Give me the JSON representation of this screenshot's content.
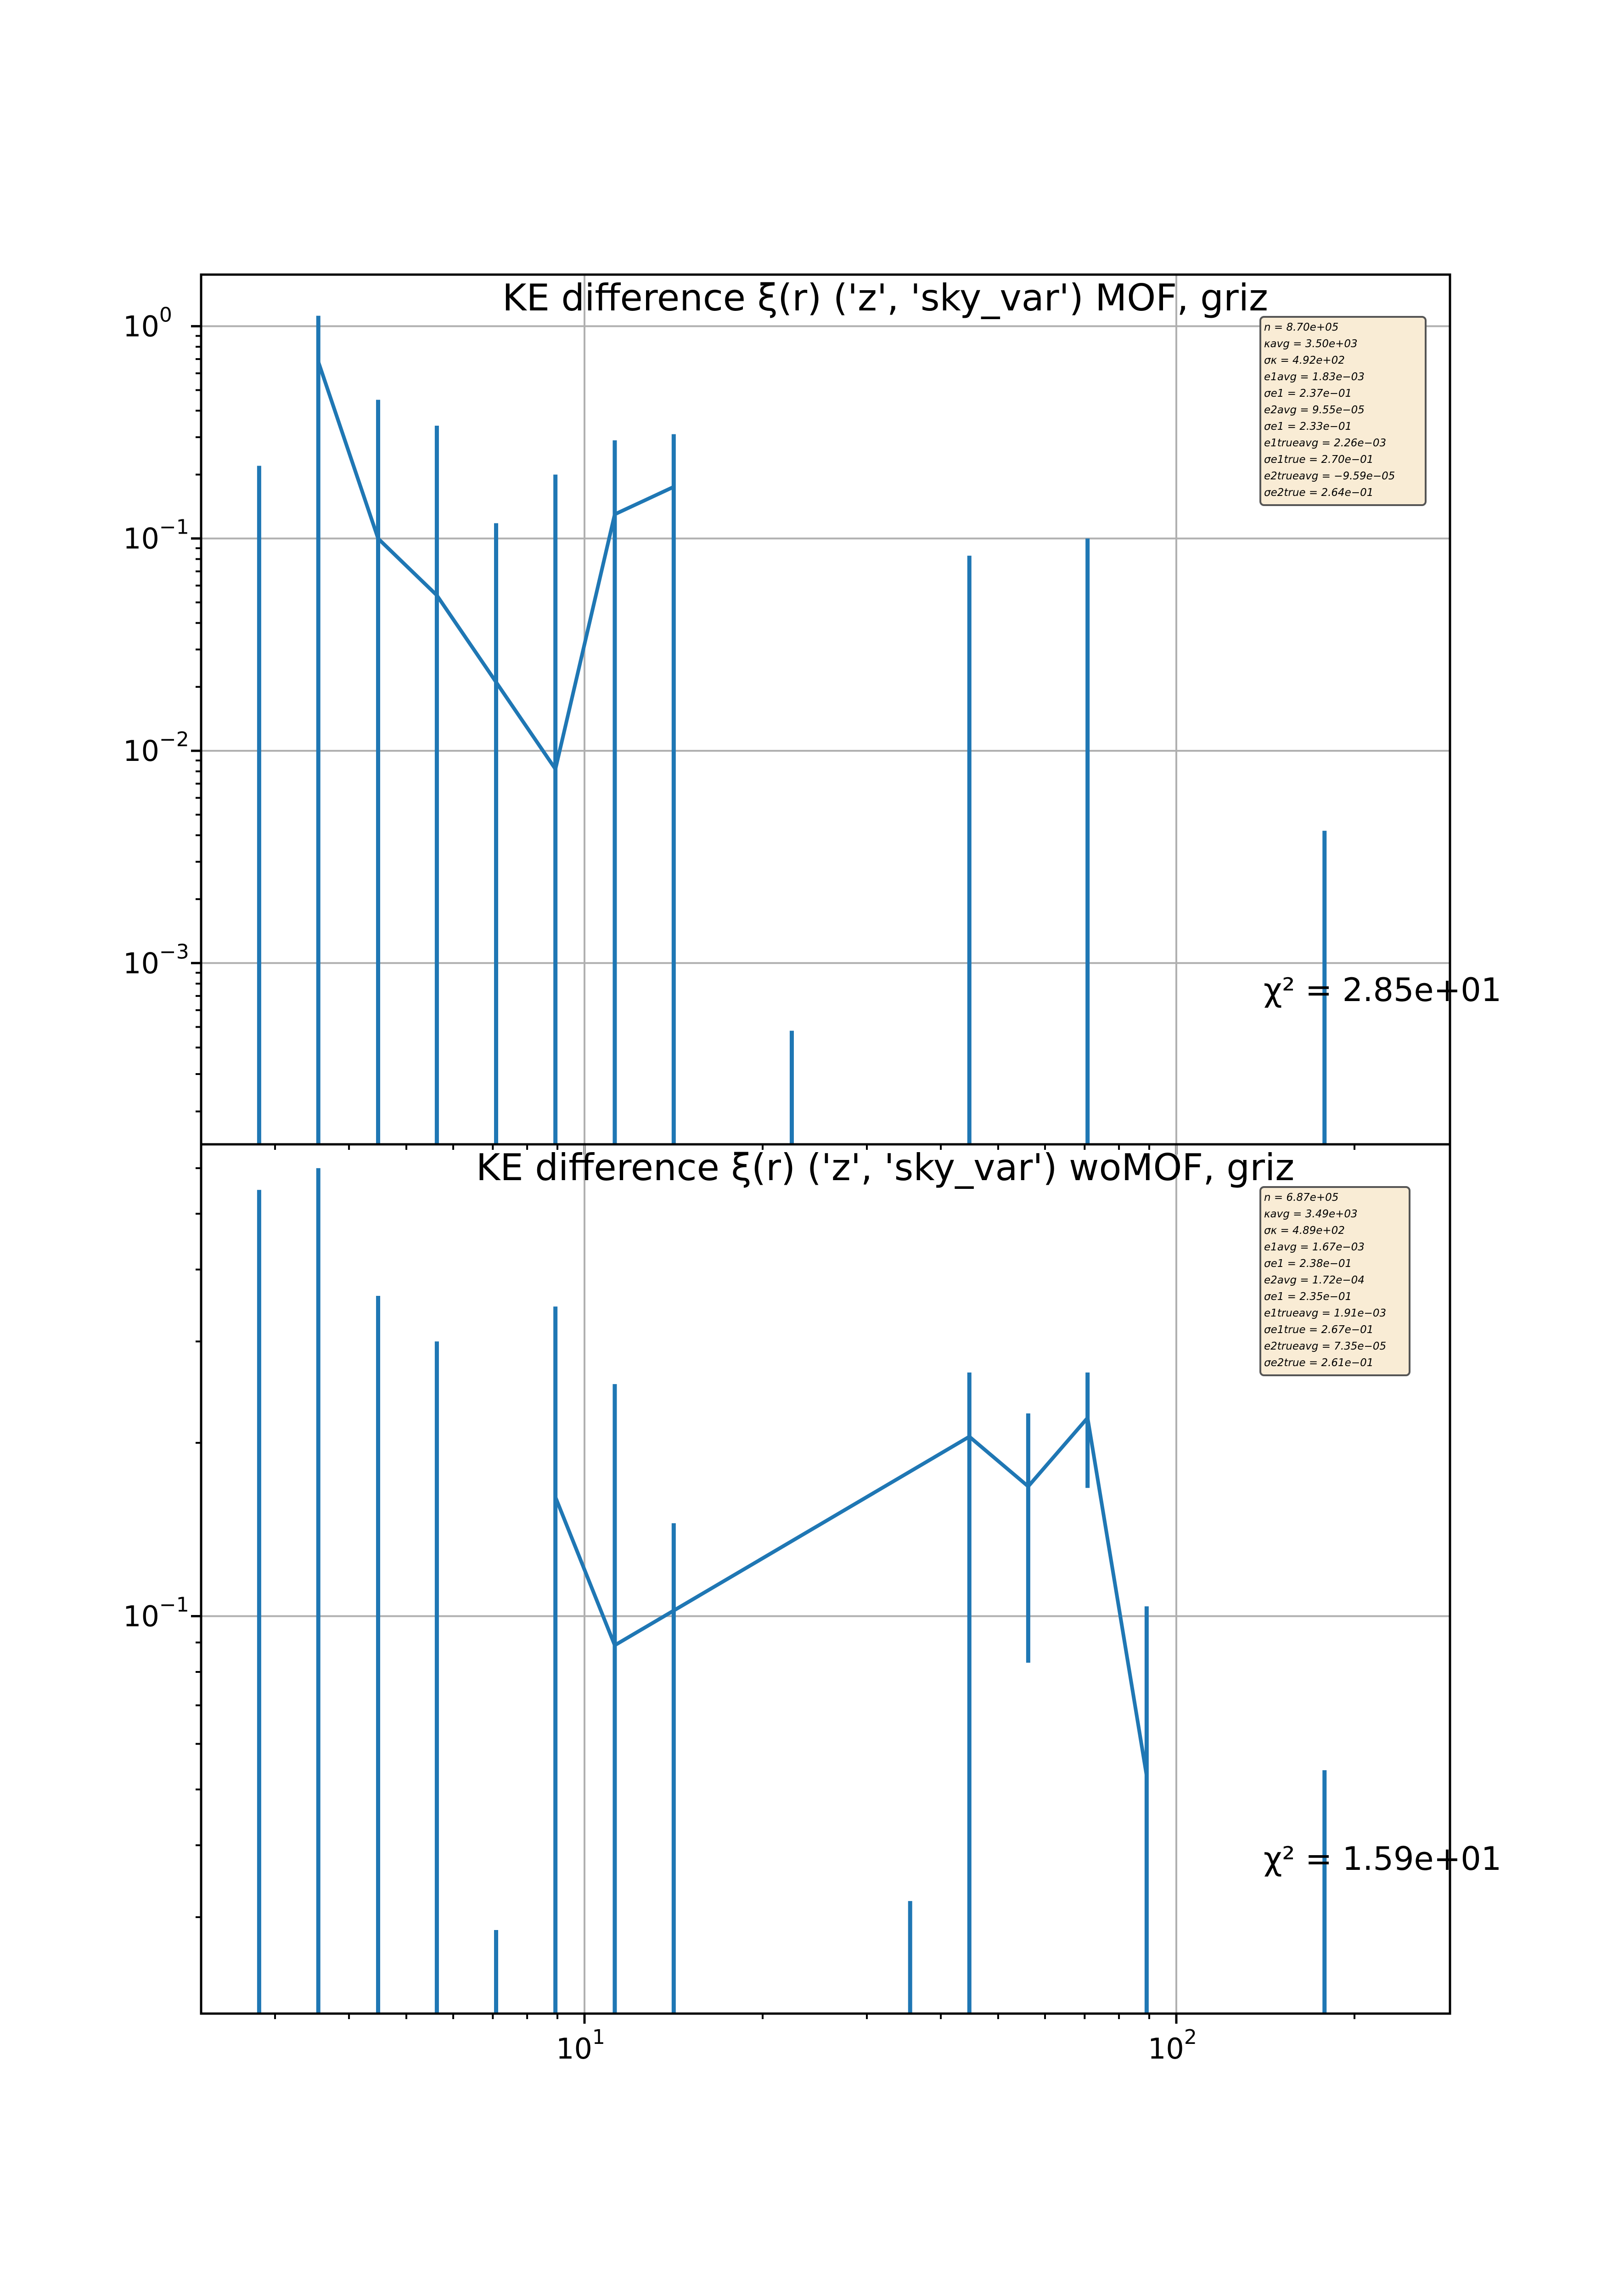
{
  "chart_data": [
    {
      "type": "line",
      "title": "KE difference ξ(r) ('z', 'sky_var') MOF,  griz",
      "xscale": "log",
      "yscale": "log",
      "xlim": [
        2.25,
        290
      ],
      "ylim": [
        0.00014,
        1.75
      ],
      "grid": true,
      "x_ticks": [
        {
          "base": "10",
          "exp": "1",
          "value": 10
        },
        {
          "base": "10",
          "exp": "2",
          "value": 100
        }
      ],
      "y_ticks": [
        {
          "base": "10",
          "exp": "0",
          "value": 1
        },
        {
          "base": "10",
          "exp": "−1",
          "value": 0.1
        },
        {
          "base": "10",
          "exp": "−2",
          "value": 0.01
        },
        {
          "base": "10",
          "exp": "−3",
          "value": 0.001
        }
      ],
      "line_points": [
        {
          "x": 3.55,
          "y": 0.68
        },
        {
          "x": 4.48,
          "y": 0.1
        },
        {
          "x": 5.63,
          "y": 0.054
        },
        {
          "x": 8.93,
          "y": 0.0082
        },
        {
          "x": 11.25,
          "y": 0.13
        },
        {
          "x": 14.15,
          "y": 0.175
        }
      ],
      "errorbars": [
        {
          "x": 2.82,
          "lo": 0.00014,
          "hi": 0.22
        },
        {
          "x": 3.55,
          "lo": 0.00014,
          "hi": 1.12
        },
        {
          "x": 4.48,
          "lo": 0.00014,
          "hi": 0.45
        },
        {
          "x": 5.63,
          "lo": 0.00014,
          "hi": 0.34
        },
        {
          "x": 7.09,
          "lo": 0.00014,
          "hi": 0.118
        },
        {
          "x": 8.93,
          "lo": 0.00014,
          "hi": 0.2
        },
        {
          "x": 11.25,
          "lo": 0.00014,
          "hi": 0.29
        },
        {
          "x": 14.15,
          "lo": 0.00014,
          "hi": 0.31
        },
        {
          "x": 22.4,
          "lo": 0.00014,
          "hi": 0.00048
        },
        {
          "x": 44.7,
          "lo": 0.00014,
          "hi": 0.083
        },
        {
          "x": 70.8,
          "lo": 0.00014,
          "hi": 0.1
        },
        {
          "x": 178,
          "lo": 0.00014,
          "hi": 0.0042
        }
      ],
      "chi2_label": "χ² = 2.85e+01",
      "stats": [
        "n = 8.70e+05",
        "κavg = 3.50e+03",
        "σκ = 4.92e+02",
        "e1avg = 1.83e−03",
        "σe1 = 2.37e−01",
        "e2avg = 9.55e−05",
        "σe1 = 2.33e−01",
        "e1trueavg = 2.26e−03",
        "σe1true = 2.70e−01",
        "e2trueavg = −9.59e−05",
        "σe2true = 2.64e−01"
      ]
    },
    {
      "type": "line",
      "title": "KE difference ξ(r) ('z', 'sky_var') woMOF,  griz",
      "xscale": "log",
      "yscale": "log",
      "xlim": [
        2.25,
        290
      ],
      "ylim": [
        0.0204,
        0.66
      ],
      "grid": true,
      "x_ticks": [
        {
          "base": "10",
          "exp": "1",
          "value": 10
        },
        {
          "base": "10",
          "exp": "2",
          "value": 100
        }
      ],
      "y_ticks": [
        {
          "base": "10",
          "exp": "−1",
          "value": 0.1
        }
      ],
      "line_points": [
        {
          "x": 8.93,
          "y": 0.161
        },
        {
          "x": 11.25,
          "y": 0.089
        },
        {
          "x": 44.7,
          "y": 0.205
        },
        {
          "x": 56.2,
          "y": 0.168
        },
        {
          "x": 70.8,
          "y": 0.221
        },
        {
          "x": 89.1,
          "y": 0.0528
        }
      ],
      "errorbars": [
        {
          "x": 2.82,
          "lo": 0.0204,
          "hi": 0.55
        },
        {
          "x": 3.55,
          "lo": 0.0204,
          "hi": 0.6
        },
        {
          "x": 4.48,
          "lo": 0.0204,
          "hi": 0.36
        },
        {
          "x": 5.63,
          "lo": 0.0204,
          "hi": 0.3
        },
        {
          "x": 7.09,
          "lo": 0.0204,
          "hi": 0.0285
        },
        {
          "x": 8.93,
          "lo": 0.0204,
          "hi": 0.345
        },
        {
          "x": 11.25,
          "lo": 0.0204,
          "hi": 0.253
        },
        {
          "x": 14.15,
          "lo": 0.0204,
          "hi": 0.145
        },
        {
          "x": 35.5,
          "lo": 0.0204,
          "hi": 0.032
        },
        {
          "x": 44.7,
          "lo": 0.0204,
          "hi": 0.265
        },
        {
          "x": 56.2,
          "lo": 0.083,
          "hi": 0.225
        },
        {
          "x": 70.8,
          "lo": 0.167,
          "hi": 0.265
        },
        {
          "x": 89.1,
          "lo": 0.0204,
          "hi": 0.104
        },
        {
          "x": 178,
          "lo": 0.0204,
          "hi": 0.054
        }
      ],
      "chi2_label": "χ² = 1.59e+01",
      "stats": [
        "n = 6.87e+05",
        "κavg = 3.49e+03",
        "σκ = 4.89e+02",
        "e1avg = 1.67e−03",
        "σe1 = 2.38e−01",
        "e2avg = 1.72e−04",
        "σe1 = 2.35e−01",
        "e1trueavg = 1.91e−03",
        "σe1true = 2.67e−01",
        "e2trueavg = 7.35e−05",
        "σe2true = 2.61e−01"
      ]
    }
  ]
}
